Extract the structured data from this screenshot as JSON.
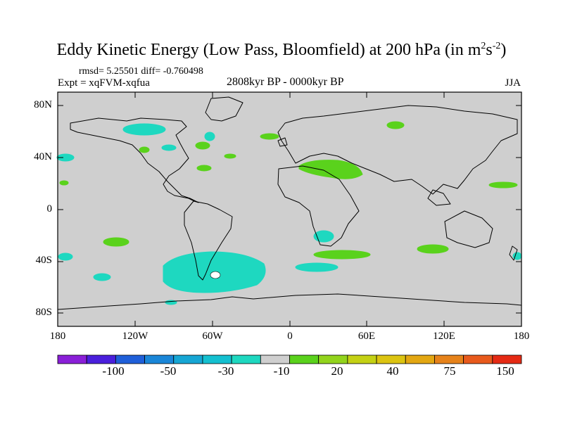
{
  "title": {
    "main": "Eddy Kinetic Energy (Low Pass, Bloomfield) at 200 hPa (in m",
    "sup1": "2",
    "s": "s",
    "sup2": "-2",
    "close": ")"
  },
  "subtitle": {
    "stats": "rmsd= 5.25501 diff= -0.760498",
    "experiment": "Expt = xqFVM-xqfua",
    "period": "2808kyr BP - 0000kyr BP",
    "season": "JJA"
  },
  "axes": {
    "lat_ticks": [
      "80N",
      "40N",
      "0",
      "40S",
      "80S"
    ],
    "lon_ticks": [
      "180",
      "120W",
      "60W",
      "0",
      "60E",
      "120E",
      "180"
    ]
  },
  "colorbar": {
    "colors": [
      "#8a1fd8",
      "#4a1fdc",
      "#1f5fd9",
      "#1a86d8",
      "#16a6d4",
      "#14c0d0",
      "#1ed8c0",
      "#cfcfcf",
      "#5ad21c",
      "#92d41c",
      "#c4d114",
      "#dcc411",
      "#e3a712",
      "#e6821a",
      "#e85a1c",
      "#e52a14"
    ],
    "labels": [
      "-100",
      "-50",
      "-30",
      "-10",
      "20",
      "40",
      "75",
      "150"
    ]
  },
  "colors": {
    "land_ocean": "#cfcfcf",
    "negative": "#1ed8c0",
    "positive": "#5ad21c"
  }
}
